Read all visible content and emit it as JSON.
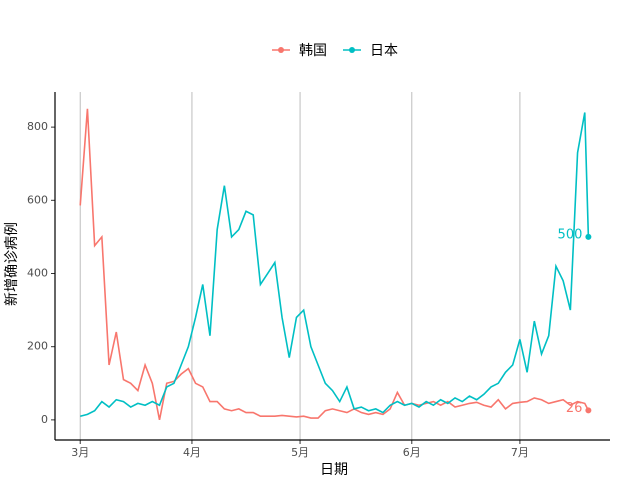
{
  "chart_data": {
    "type": "line",
    "xlabel": "日期",
    "ylabel": "新增确诊病例",
    "x": [
      0,
      2,
      4,
      6,
      8,
      10,
      12,
      14,
      16,
      18,
      20,
      22,
      24,
      26,
      28,
      30,
      32,
      34,
      36,
      38,
      40,
      42,
      44,
      46,
      48,
      50,
      52,
      54,
      56,
      58,
      60,
      62,
      64,
      66,
      68,
      70,
      72,
      74,
      76,
      78,
      80,
      82,
      84,
      86,
      88,
      90,
      92,
      94,
      96,
      98,
      100,
      102,
      104,
      106,
      108,
      110,
      112,
      114,
      116,
      118,
      120,
      122,
      124,
      126,
      128,
      130,
      132,
      134,
      136,
      138,
      140,
      141
    ],
    "series": [
      {
        "name": "韩国",
        "color": "#F8766D",
        "values": [
          586,
          850,
          476,
          500,
          150,
          240,
          110,
          100,
          80,
          150,
          100,
          0,
          100,
          105,
          125,
          140,
          100,
          90,
          50,
          50,
          30,
          25,
          30,
          20,
          20,
          10,
          10,
          10,
          12,
          10,
          8,
          10,
          5,
          5,
          25,
          30,
          25,
          20,
          30,
          20,
          15,
          20,
          15,
          30,
          75,
          40,
          45,
          40,
          45,
          50,
          40,
          50,
          35,
          40,
          45,
          48,
          40,
          35,
          55,
          30,
          45,
          48,
          50,
          60,
          55,
          45,
          50,
          55,
          40,
          50,
          45,
          26
        ]
      },
      {
        "name": "日本",
        "color": "#00BFC4",
        "values": [
          10,
          15,
          25,
          50,
          35,
          55,
          50,
          35,
          45,
          40,
          50,
          40,
          90,
          100,
          150,
          200,
          280,
          370,
          230,
          520,
          640,
          500,
          520,
          570,
          560,
          370,
          400,
          430,
          280,
          170,
          280,
          300,
          200,
          150,
          100,
          80,
          50,
          90,
          30,
          35,
          25,
          30,
          20,
          40,
          50,
          40,
          45,
          35,
          50,
          40,
          55,
          45,
          60,
          50,
          65,
          55,
          70,
          90,
          100,
          130,
          150,
          220,
          130,
          270,
          180,
          230,
          420,
          380,
          300,
          730,
          840,
          500
        ]
      }
    ],
    "xlim": [
      -7,
      147
    ],
    "xticks": [
      {
        "value": 0,
        "label": "3月"
      },
      {
        "value": 31,
        "label": "4月"
      },
      {
        "value": 61,
        "label": "5月"
      },
      {
        "value": 92,
        "label": "6月"
      },
      {
        "value": 122,
        "label": "7月"
      }
    ],
    "ylim": [
      -55,
      896
    ],
    "yticks": [
      0,
      200,
      400,
      600,
      800
    ],
    "grid": "x"
  }
}
